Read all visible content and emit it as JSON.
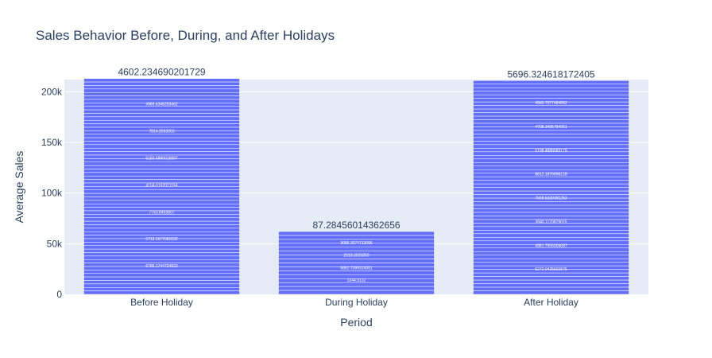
{
  "chart_data": {
    "type": "bar",
    "title": "Sales Behavior Before, During, and After Holidays",
    "xlabel": "Period",
    "ylabel": "Average Sales",
    "categories": [
      "Before Holiday",
      "During Holiday",
      "After Holiday"
    ],
    "totals": [
      213000,
      62000,
      211000
    ],
    "top_labels": [
      "4602.2346902017​29",
      "87.28456014362656",
      "5696.324618172405"
    ],
    "segment_counts": [
      62,
      16,
      60
    ],
    "inner_labels": [
      [
        "4969.4348253462",
        "7814.2693003",
        "5183.5890018887",
        "4154.0152021154",
        "7743.8493807",
        "5713.1677081032",
        "6785.1744724823"
      ],
      [
        "3095.3074713096",
        "2918.3026850",
        "5862.7399314351",
        "3244.9122"
      ],
      [
        "4560.7677484552",
        "4708.3495784951",
        "5198.4888083179",
        "8812.1876896128",
        "7698.5339381253",
        "3840.1170879015",
        "4981.7506004087",
        "5272.0425601575"
      ]
    ],
    "yticks": [
      0,
      50000,
      100000,
      150000,
      200000
    ],
    "ytick_labels": [
      "0",
      "50k",
      "100k",
      "150k",
      "200k"
    ],
    "ylim": [
      0,
      212000
    ],
    "bar_color": "#636efa",
    "plot_bg": "#e5ecf6",
    "grid": true,
    "legend": "none"
  }
}
